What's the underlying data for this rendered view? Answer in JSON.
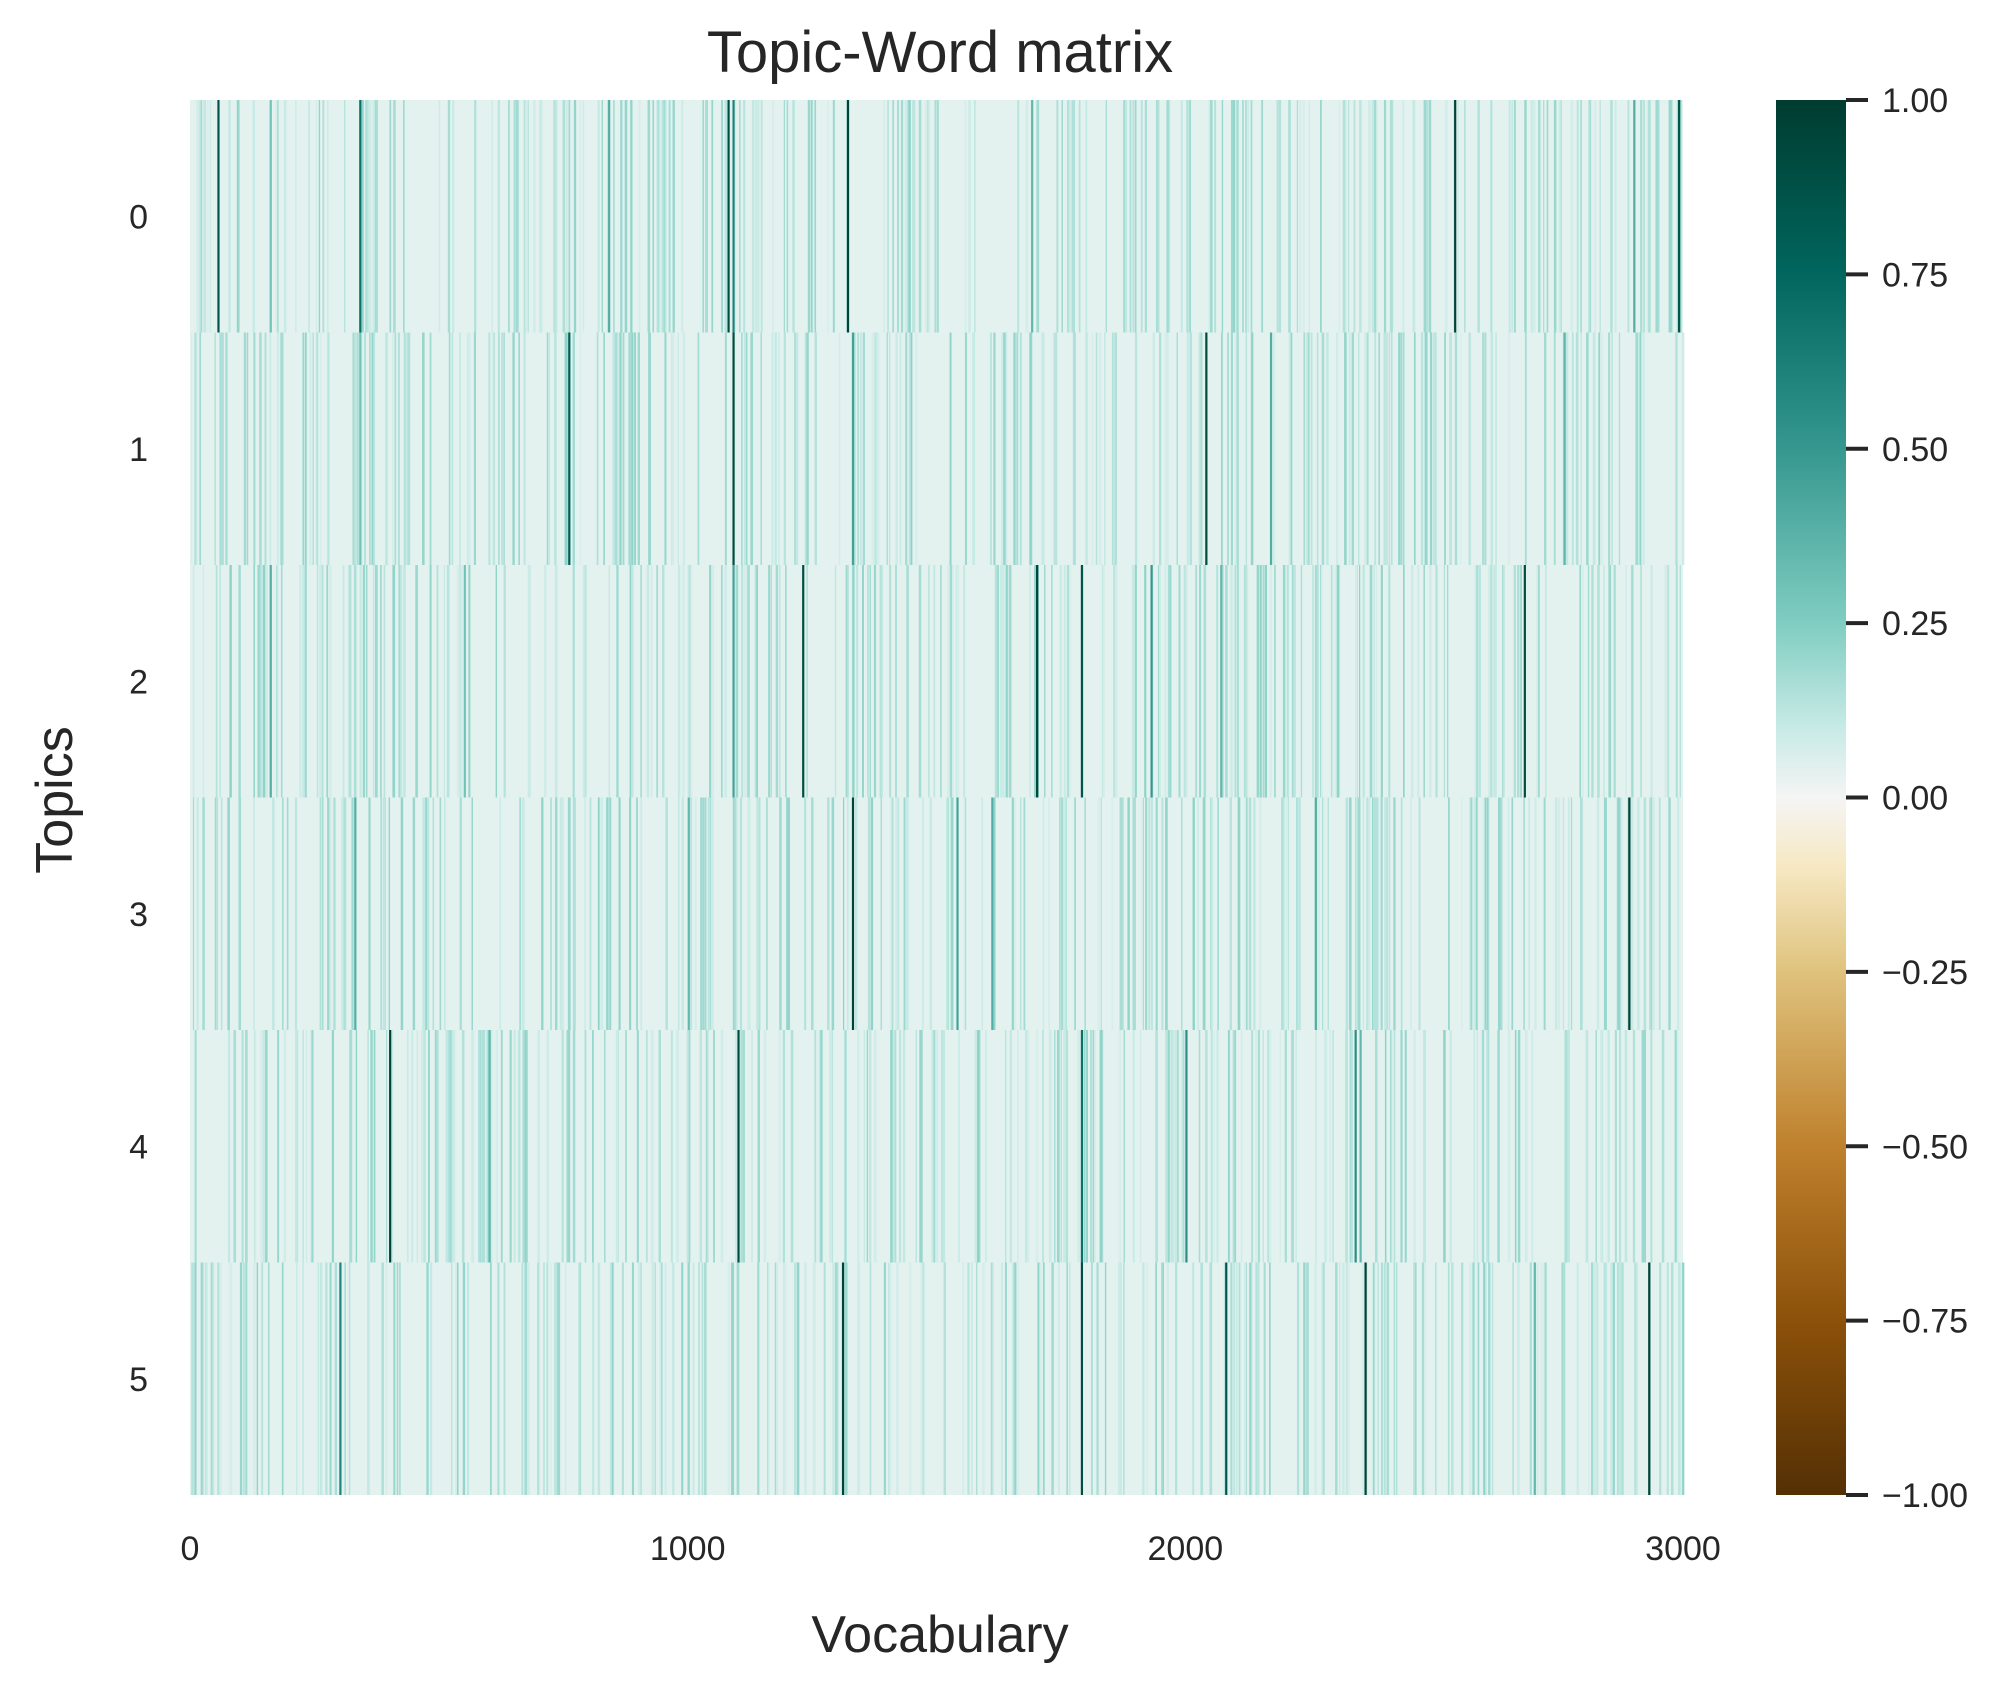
{
  "chart_data": {
    "type": "heatmap",
    "title": "Topic-Word matrix",
    "xlabel": "Vocabulary",
    "ylabel": "Topics",
    "rows": [
      "0",
      "1",
      "2",
      "3",
      "4",
      "5"
    ],
    "x_ticks": [
      "0",
      "1000",
      "2000",
      "3000"
    ],
    "x_tick_values": [
      0,
      1000,
      2000,
      3000
    ],
    "vocab_size": 3000,
    "xlim": [
      0,
      3000
    ],
    "colorbar": {
      "ticks": [
        "1.00",
        "0.75",
        "0.50",
        "0.25",
        "0.00",
        "−0.25",
        "−0.50",
        "−0.75",
        "−1.00"
      ],
      "tick_values": [
        1.0,
        0.75,
        0.5,
        0.25,
        0.0,
        -0.25,
        -0.5,
        -0.75,
        -1.0
      ],
      "vmin": -1.0,
      "vmax": 1.0,
      "colormap": "BrBG",
      "stops": [
        {
          "v": -1.0,
          "color": "#543005"
        },
        {
          "v": -0.75,
          "color": "#8c510a"
        },
        {
          "v": -0.5,
          "color": "#bf812d"
        },
        {
          "v": -0.25,
          "color": "#dfc27d"
        },
        {
          "v": -0.1,
          "color": "#f6e8c3"
        },
        {
          "v": 0.0,
          "color": "#f5f5f5"
        },
        {
          "v": 0.1,
          "color": "#c7eae5"
        },
        {
          "v": 0.25,
          "color": "#80cdc1"
        },
        {
          "v": 0.5,
          "color": "#35978f"
        },
        {
          "v": 0.75,
          "color": "#01665e"
        },
        {
          "v": 1.0,
          "color": "#003c30"
        }
      ]
    },
    "background_value": 0.04,
    "notable_entries": [
      {
        "row": 0,
        "cells": [
          [
            55,
            0.85
          ],
          [
            160,
            0.3
          ],
          [
            340,
            0.7
          ],
          [
            840,
            0.4
          ],
          [
            1080,
            0.9
          ],
          [
            1090,
            0.6
          ],
          [
            1320,
            0.95
          ],
          [
            1690,
            0.35
          ],
          [
            2540,
            0.95
          ],
          [
            2990,
            0.85
          ],
          [
            2900,
            0.4
          ]
        ]
      },
      {
        "row": 1,
        "cells": [
          [
            340,
            0.3
          ],
          [
            760,
            0.8
          ],
          [
            1090,
            0.9
          ],
          [
            1330,
            0.45
          ],
          [
            2040,
            0.9
          ],
          [
            2170,
            0.4
          ],
          [
            2760,
            0.35
          ]
        ]
      },
      {
        "row": 2,
        "cells": [
          [
            160,
            0.4
          ],
          [
            550,
            0.3
          ],
          [
            1090,
            0.45
          ],
          [
            1230,
            0.9
          ],
          [
            1700,
            0.95
          ],
          [
            1790,
            0.85
          ],
          [
            1930,
            0.5
          ],
          [
            2070,
            0.35
          ],
          [
            2680,
            0.9
          ]
        ]
      },
      {
        "row": 3,
        "cells": [
          [
            330,
            0.4
          ],
          [
            1000,
            0.35
          ],
          [
            1330,
            0.95
          ],
          [
            1540,
            0.45
          ],
          [
            1610,
            0.4
          ],
          [
            2260,
            0.4
          ],
          [
            2890,
            0.95
          ]
        ]
      },
      {
        "row": 4,
        "cells": [
          [
            400,
            0.95
          ],
          [
            600,
            0.35
          ],
          [
            1100,
            0.9
          ],
          [
            1790,
            0.7
          ],
          [
            2000,
            0.55
          ],
          [
            2340,
            0.55
          ],
          [
            2350,
            0.35
          ]
        ]
      },
      {
        "row": 5,
        "cells": [
          [
            300,
            0.6
          ],
          [
            1310,
            0.95
          ],
          [
            1790,
            0.9
          ],
          [
            2080,
            0.85
          ],
          [
            2360,
            0.95
          ],
          [
            2930,
            0.95
          ],
          [
            2700,
            0.35
          ]
        ]
      }
    ]
  }
}
